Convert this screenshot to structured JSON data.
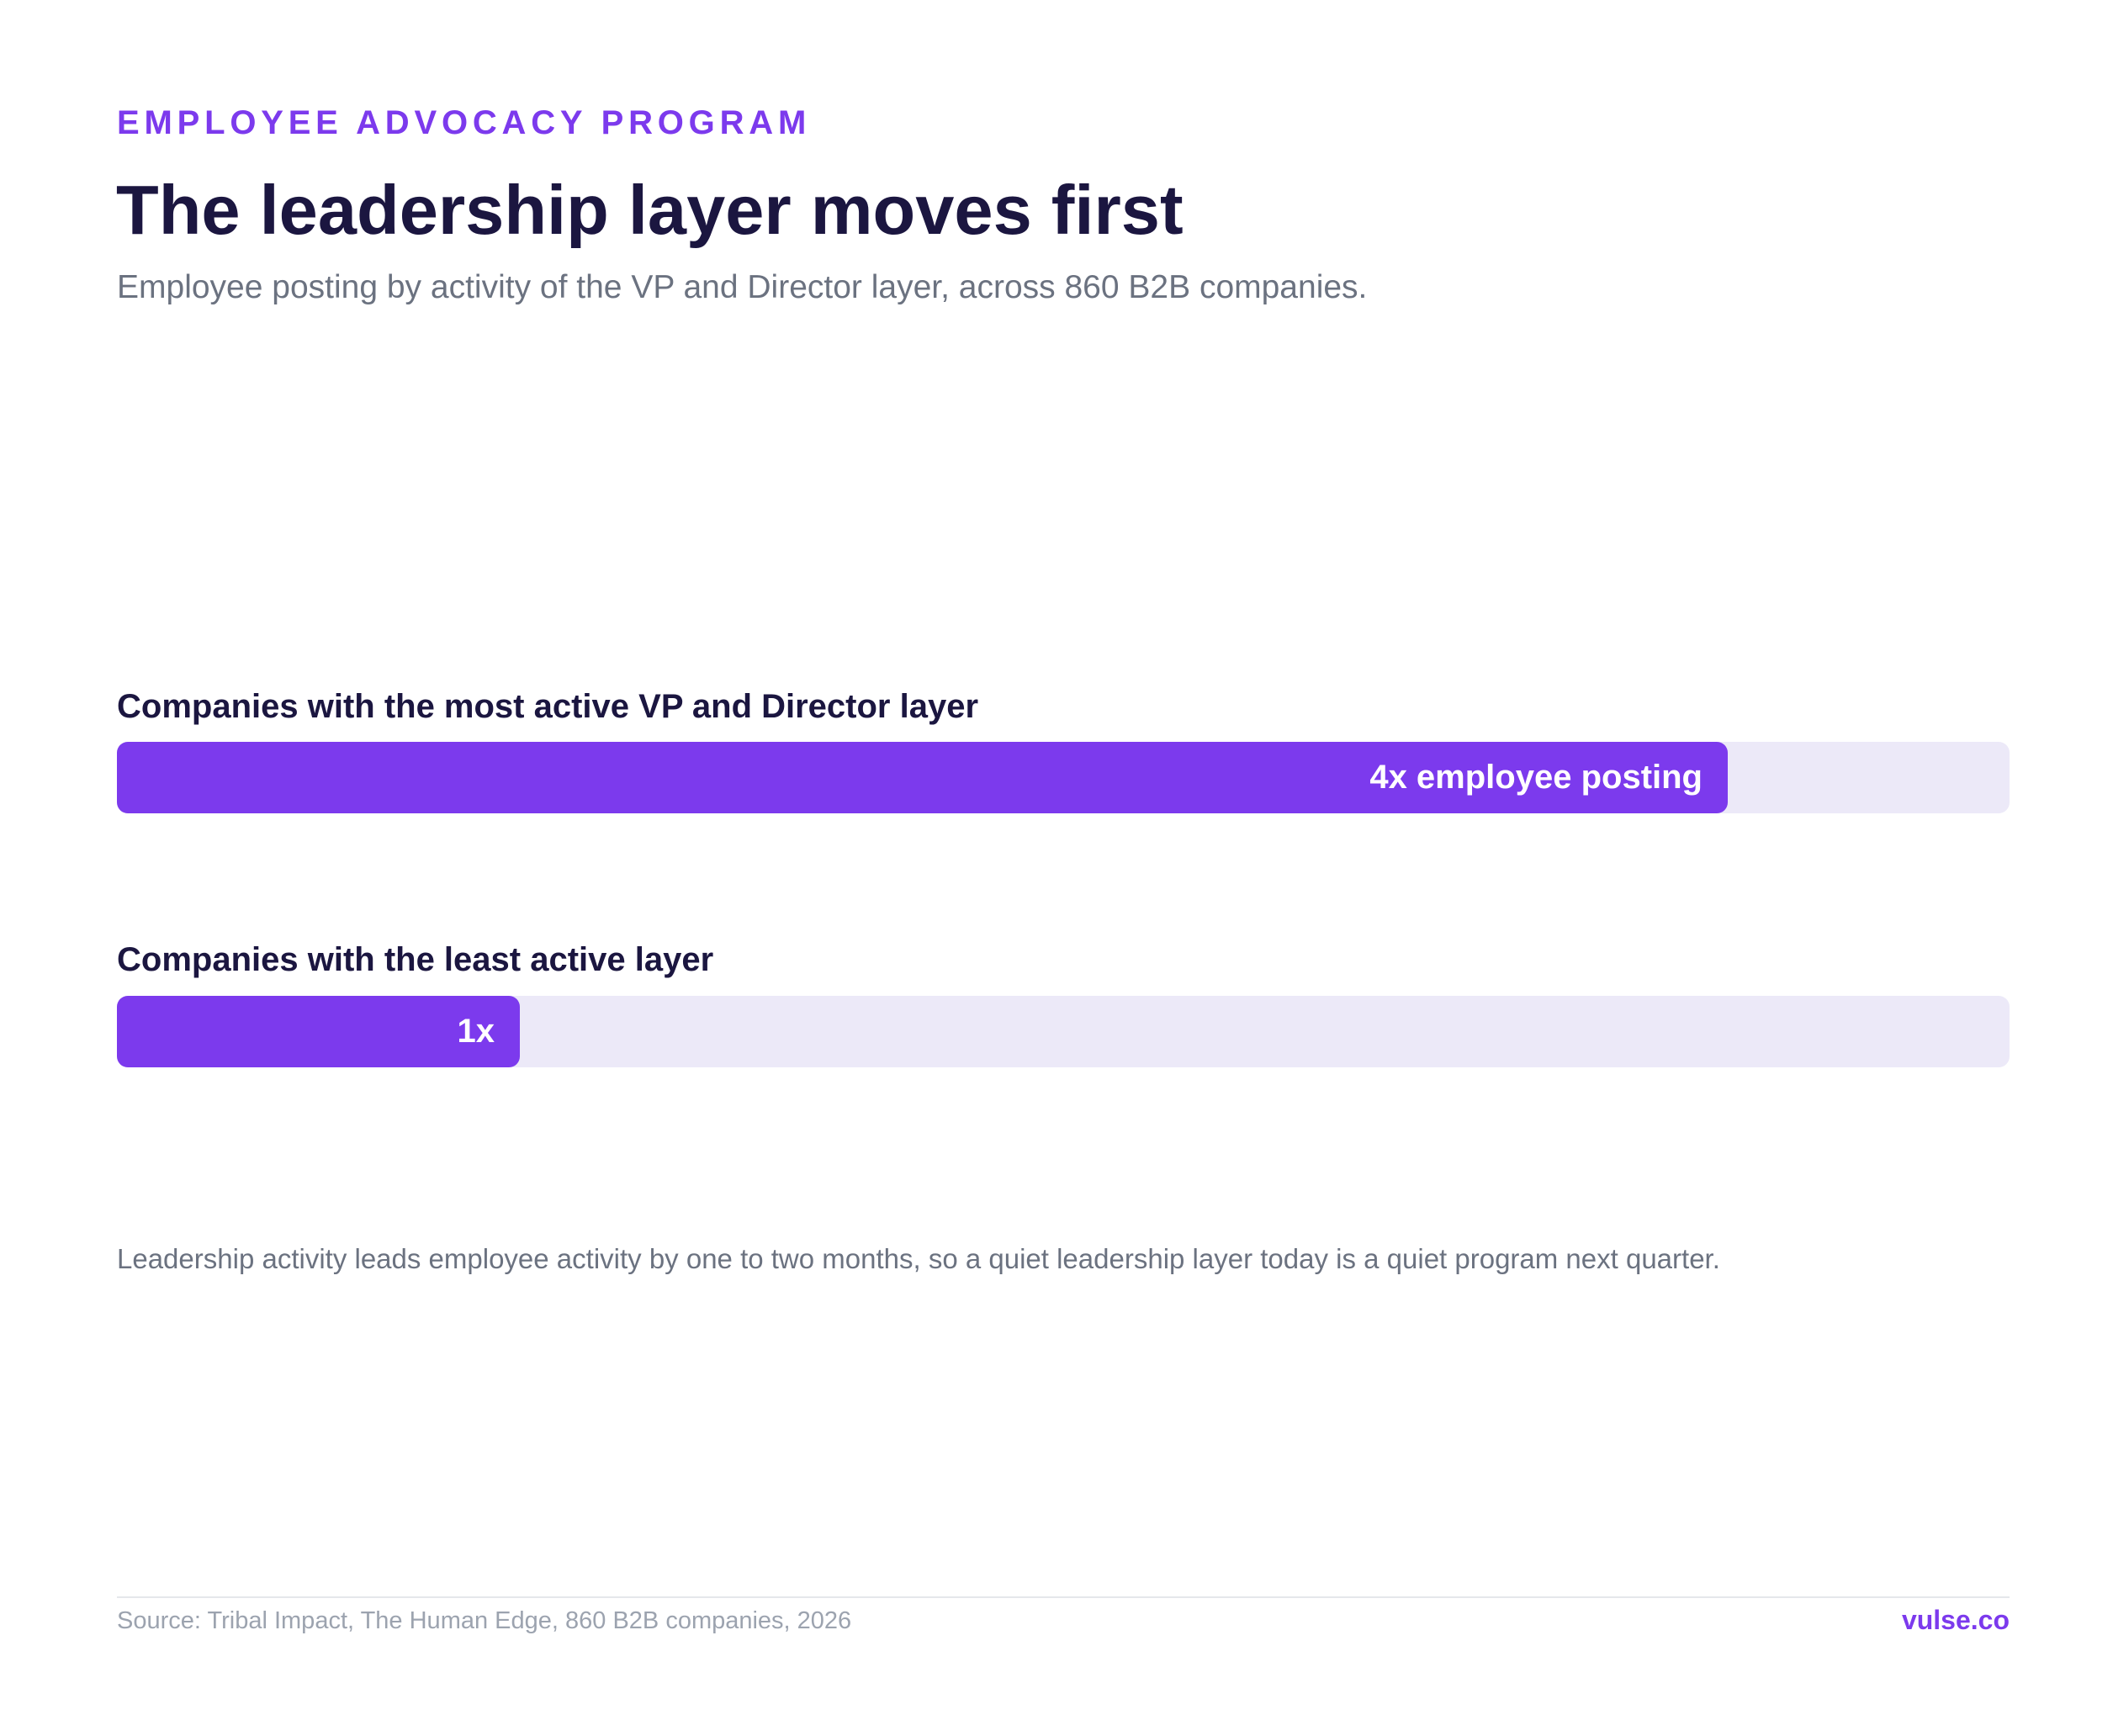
{
  "header": {
    "eyebrow": "EMPLOYEE ADVOCACY PROGRAM",
    "title": "The leadership layer moves first",
    "subtitle": "Employee posting by activity of the VP and Director layer, across 860 B2B companies."
  },
  "chart_data": {
    "type": "bar",
    "orientation": "horizontal",
    "xlim": [
      0,
      4.7
    ],
    "colors": {
      "fill": "#7c3aed",
      "track": "#ece9f8"
    },
    "categories": [
      "Companies with the most active VP and Director layer",
      "Companies with the least active layer"
    ],
    "values": [
      4,
      1
    ],
    "data_labels": [
      "4x employee posting",
      "1x"
    ]
  },
  "note": "Leadership activity leads employee activity by one to two months, so a quiet leadership layer today is a quiet program next quarter.",
  "footer": {
    "source": "Source: Tribal Impact, The Human Edge, 860 B2B companies, 2026",
    "brand": "vulse.co"
  }
}
